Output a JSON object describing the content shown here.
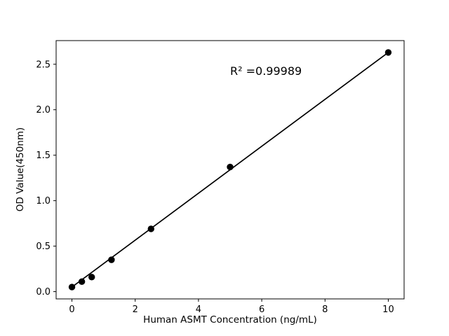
{
  "figure": {
    "background": "#ffffff"
  },
  "chart_data": {
    "type": "scatter",
    "x": [
      0,
      0.3125,
      0.625,
      1.25,
      2.5,
      5,
      10
    ],
    "y": [
      0.05,
      0.11,
      0.16,
      0.35,
      0.69,
      1.37,
      2.63
    ],
    "fit_line": {
      "x": [
        0,
        10
      ],
      "y": [
        0.05,
        2.63
      ]
    },
    "annotation": "R² =0.99989",
    "xlabel": "Human ASMT Concentration (ng/mL)",
    "ylabel": "OD Value(450nm)",
    "xlim": [
      -0.5,
      10.5
    ],
    "ylim": [
      -0.08,
      2.76
    ],
    "xticks": [
      "0",
      "2",
      "4",
      "6",
      "8",
      "10"
    ],
    "yticks": [
      "0.0",
      "0.5",
      "1.0",
      "1.5",
      "2.0",
      "2.5"
    ],
    "grid": false,
    "legend_position": "none",
    "marker_color": "#000000",
    "line_color": "#000000",
    "frame_color": "#000000"
  }
}
